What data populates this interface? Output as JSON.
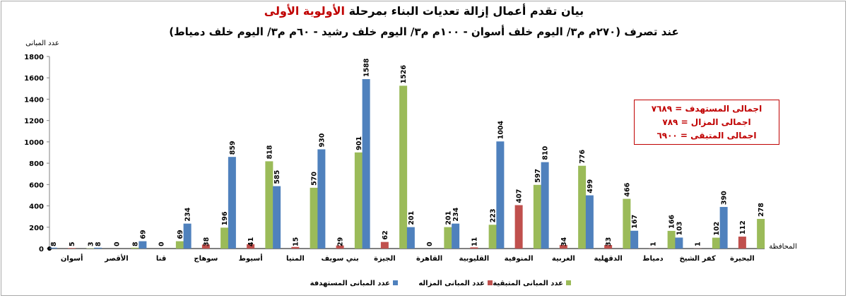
{
  "chart_data": {
    "type": "bar",
    "title_line1": "بيان تقدم أعمال إزالة تعديات البناء بمرحلة",
    "title_line1_highlight": "الأولوية الأولى",
    "title_line2": "عند تصرف (٢٧٠م م٣/ اليوم خلف أسوان - ١٠٠م م٣/ اليوم خلف رشيد - ٦٠م م٣/ اليوم خلف دمياط)",
    "ylabel": "عدد المبانى",
    "xlabel": "المحافظة",
    "ylim": [
      0,
      1800
    ],
    "yticks": [
      0,
      200,
      400,
      600,
      800,
      1000,
      1200,
      1400,
      1600,
      1800
    ],
    "grid": false,
    "legend_position": "bottom",
    "categories": [
      "أسوان",
      "الأقصر",
      "قنا",
      "سوهاج",
      "أسيوط",
      "المنيا",
      "بني سويف",
      "الجيزة",
      "القاهرة",
      "القليوبية",
      "المنوفية",
      "الغربية",
      "الدقهلية",
      "دمياط",
      "كفر الشيخ",
      "البحيرة"
    ],
    "series": [
      {
        "name": "عدد المبانى المستهدفة",
        "color": "#4f81bd",
        "values": [
          8,
          8,
          69,
          234,
          859,
          585,
          930,
          1588,
          201,
          234,
          1004,
          810,
          499,
          167,
          103,
          390
        ]
      },
      {
        "name": "عدد المبانى المزاله",
        "color": "#c0504d",
        "values": [
          5,
          0,
          0,
          38,
          41,
          15,
          29,
          62,
          0,
          11,
          407,
          34,
          33,
          1,
          1,
          112
        ]
      },
      {
        "name": "عدد المبانى المتبقية",
        "color": "#9bbb59",
        "values": [
          3,
          8,
          69,
          196,
          818,
          570,
          901,
          1526,
          201,
          223,
          597,
          776,
          466,
          166,
          102,
          278
        ]
      }
    ],
    "totals": [
      "اجمالى المستهدف = ٧٦٨٩",
      "اجمالى المزال = ٧٨٩",
      "اجمالى المتبقى = ٦٩٠٠"
    ]
  }
}
